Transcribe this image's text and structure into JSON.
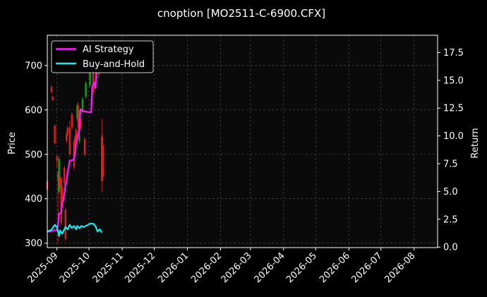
{
  "colors": {
    "background": "#000000",
    "axes_face": "#0a0a0a",
    "axis": "#ffffff",
    "grid": "#555555",
    "up_candle": "#1a9e1a",
    "down_candle": "#e01e1e",
    "ai_strategy": "#ff1aff",
    "buy_and_hold": "#1ee6f0"
  },
  "chart_data": {
    "type": "line",
    "title": "cnoption [MO2511-C-6900.CFX]",
    "xlabel": "",
    "ylabel_left": "Price",
    "ylabel_right": "Return",
    "x_range": [
      "2025-08-23",
      "2026-08-23"
    ],
    "ylim_left": [
      290,
      768
    ],
    "ylim_right": [
      -0.05,
      19.05
    ],
    "grid": true,
    "legend_placement": "top-left",
    "x_ticks": [
      "2025-09",
      "2025-10",
      "2025-11",
      "2025-12",
      "2026-01",
      "2026-02",
      "2026-03",
      "2026-04",
      "2026-05",
      "2026-06",
      "2026-07",
      "2026-08"
    ],
    "y_ticks_left": [
      "300",
      "400",
      "500",
      "600",
      "700"
    ],
    "y_ticks_right": [
      "0.0",
      "2.5",
      "5.0",
      "7.5",
      "10.0",
      "12.5",
      "15.0",
      "17.5"
    ],
    "candles": [
      {
        "date": "2025-08-23",
        "open": 440,
        "close": 420,
        "high": 445,
        "low": 408
      },
      {
        "date": "2025-08-27",
        "open": 652,
        "close": 640,
        "high": 656,
        "low": 636
      },
      {
        "date": "2025-08-28",
        "open": 630,
        "close": 622,
        "high": 632,
        "low": 620
      },
      {
        "date": "2025-08-30",
        "open": 565,
        "close": 525,
        "high": 568,
        "low": 522
      },
      {
        "date": "2025-09-01",
        "open": 495,
        "close": 485,
        "high": 498,
        "low": 470
      },
      {
        "date": "2025-09-02",
        "open": 458,
        "close": 442,
        "high": 462,
        "low": 300
      },
      {
        "date": "2025-09-03",
        "open": 415,
        "close": 490,
        "high": 497,
        "low": 410
      },
      {
        "date": "2025-09-04",
        "open": 448,
        "close": 430,
        "high": 452,
        "low": 425
      },
      {
        "date": "2025-09-05",
        "open": 445,
        "close": 345,
        "high": 450,
        "low": 340
      },
      {
        "date": "2025-09-06",
        "open": 425,
        "close": 400,
        "high": 430,
        "low": 395
      },
      {
        "date": "2025-09-08",
        "open": 470,
        "close": 435,
        "high": 475,
        "low": 430
      },
      {
        "date": "2025-09-09",
        "open": 375,
        "close": 310,
        "high": 380,
        "low": 305
      },
      {
        "date": "2025-09-10",
        "open": 545,
        "close": 530,
        "high": 550,
        "low": 525
      },
      {
        "date": "2025-09-11",
        "open": 560,
        "close": 545,
        "high": 565,
        "low": 540
      },
      {
        "date": "2025-09-13",
        "open": 560,
        "close": 500,
        "high": 575,
        "low": 495
      },
      {
        "date": "2025-09-15",
        "open": 590,
        "close": 560,
        "high": 595,
        "low": 555
      },
      {
        "date": "2025-09-17",
        "open": 530,
        "close": 470,
        "high": 535,
        "low": 465
      },
      {
        "date": "2025-09-18",
        "open": 540,
        "close": 505,
        "high": 545,
        "low": 500
      },
      {
        "date": "2025-09-19",
        "open": 555,
        "close": 525,
        "high": 560,
        "low": 520
      },
      {
        "date": "2025-09-20",
        "open": 580,
        "close": 610,
        "high": 615,
        "low": 575
      },
      {
        "date": "2025-09-21",
        "open": 610,
        "close": 560,
        "high": 618,
        "low": 540
      },
      {
        "date": "2025-09-22",
        "open": 530,
        "close": 545,
        "high": 598,
        "low": 525
      },
      {
        "date": "2025-09-23",
        "open": 580,
        "close": 560,
        "high": 590,
        "low": 555
      },
      {
        "date": "2025-09-25",
        "open": 595,
        "close": 625,
        "high": 630,
        "low": 590
      },
      {
        "date": "2025-09-27",
        "open": 535,
        "close": 500,
        "high": 540,
        "low": 495
      },
      {
        "date": "2025-09-28",
        "open": 630,
        "close": 660,
        "high": 665,
        "low": 625
      },
      {
        "date": "2025-10-02",
        "open": 655,
        "close": 690,
        "high": 695,
        "low": 650
      },
      {
        "date": "2025-10-05",
        "open": 700,
        "close": 640,
        "high": 705,
        "low": 635
      },
      {
        "date": "2025-10-08",
        "open": 670,
        "close": 690,
        "high": 698,
        "low": 665
      },
      {
        "date": "2025-10-10",
        "open": 700,
        "close": 680,
        "high": 705,
        "low": 670
      },
      {
        "date": "2025-10-13",
        "open": 540,
        "close": 440,
        "high": 580,
        "low": 415
      },
      {
        "date": "2025-10-14",
        "open": 520,
        "close": 450,
        "high": 545,
        "low": 440
      }
    ],
    "series": [
      {
        "name": "AI Strategy",
        "points": [
          [
            "2025-08-23",
            1.4
          ],
          [
            "2025-08-26",
            1.4
          ],
          [
            "2025-08-29",
            1.5
          ],
          [
            "2025-09-01",
            1.5
          ],
          [
            "2025-09-02",
            2.0
          ],
          [
            "2025-09-03",
            3.0
          ],
          [
            "2025-09-05",
            3.1
          ],
          [
            "2025-09-06",
            4.0
          ],
          [
            "2025-09-07",
            4.2
          ],
          [
            "2025-09-08",
            4.8
          ],
          [
            "2025-09-09",
            5.6
          ],
          [
            "2025-09-10",
            5.9
          ],
          [
            "2025-09-11",
            6.7
          ],
          [
            "2025-09-13",
            7.8
          ],
          [
            "2025-09-15",
            7.8
          ],
          [
            "2025-09-17",
            7.9
          ],
          [
            "2025-09-19",
            9.3
          ],
          [
            "2025-09-21",
            10.2
          ],
          [
            "2025-09-22",
            10.6
          ],
          [
            "2025-09-23",
            12.4
          ],
          [
            "2025-09-27",
            12.2
          ],
          [
            "2025-10-03",
            12.1
          ],
          [
            "2025-10-04",
            14.4
          ],
          [
            "2025-10-06",
            14.8
          ],
          [
            "2025-10-07",
            14.3
          ],
          [
            "2025-10-09",
            18.0
          ]
        ]
      },
      {
        "name": "Buy-and-Hold",
        "points": [
          [
            "2025-08-23",
            1.4
          ],
          [
            "2025-08-26",
            1.5
          ],
          [
            "2025-08-28",
            1.7
          ],
          [
            "2025-08-30",
            2.0
          ],
          [
            "2025-09-01",
            1.8
          ],
          [
            "2025-09-02",
            1.4
          ],
          [
            "2025-09-03",
            1.0
          ],
          [
            "2025-09-04",
            1.5
          ],
          [
            "2025-09-06",
            1.2
          ],
          [
            "2025-09-07",
            1.4
          ],
          [
            "2025-09-09",
            1.8
          ],
          [
            "2025-09-11",
            1.6
          ],
          [
            "2025-09-13",
            2.0
          ],
          [
            "2025-09-15",
            1.7
          ],
          [
            "2025-09-17",
            1.9
          ],
          [
            "2025-09-19",
            1.6
          ],
          [
            "2025-09-20",
            1.9
          ],
          [
            "2025-09-22",
            1.7
          ],
          [
            "2025-09-24",
            1.9
          ],
          [
            "2025-09-26",
            1.8
          ],
          [
            "2025-09-28",
            1.9
          ],
          [
            "2025-09-30",
            2.0
          ],
          [
            "2025-10-02",
            2.1
          ],
          [
            "2025-10-05",
            2.1
          ],
          [
            "2025-10-07",
            1.9
          ],
          [
            "2025-10-09",
            1.4
          ],
          [
            "2025-10-11",
            1.6
          ],
          [
            "2025-10-13",
            1.3
          ]
        ]
      }
    ]
  }
}
